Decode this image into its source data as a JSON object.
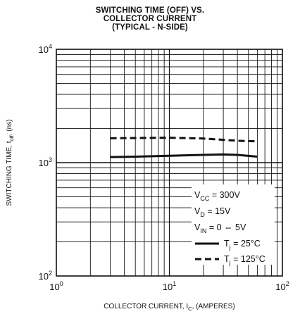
{
  "chart_data": {
    "type": "line",
    "title_lines": [
      "SWITCHING TIME (OFF) VS.",
      "COLLECTOR CURRENT",
      "(TYPICAL - N-SIDE)"
    ],
    "xlabel": "COLLECTOR CURRENT, IC, (AMPERES)",
    "ylabel": "SWITCHING TIME, toff, (ns)",
    "xscale": "log",
    "yscale": "log",
    "xlim": [
      1,
      100
    ],
    "ylim": [
      100,
      10000
    ],
    "x_tick_labels": [
      {
        "base": "10",
        "exp": "0"
      },
      {
        "base": "10",
        "exp": "1"
      },
      {
        "base": "10",
        "exp": "2"
      }
    ],
    "y_tick_labels": [
      {
        "base": "10",
        "exp": "2"
      },
      {
        "base": "10",
        "exp": "3"
      },
      {
        "base": "10",
        "exp": "4"
      }
    ],
    "grid": true,
    "conditions": [
      {
        "pre": "V",
        "sub": "CC",
        "post": " = 300V"
      },
      {
        "pre": "V",
        "sub": "D",
        "post": " = 15V"
      },
      {
        "pre": "V",
        "sub": "IN",
        "post": " = 0 ⇔ 5V"
      }
    ],
    "series": [
      {
        "name_pre": "T",
        "name_sub": "j",
        "name_post": " = 25°C",
        "style": "solid",
        "x": [
          3,
          5,
          10,
          20,
          30,
          40,
          60
        ],
        "y": [
          1120,
          1130,
          1150,
          1170,
          1180,
          1170,
          1130
        ]
      },
      {
        "name_pre": "T",
        "name_sub": "j",
        "name_post": " = 125°C",
        "style": "dashed",
        "x": [
          3,
          5,
          10,
          20,
          30,
          40,
          60
        ],
        "y": [
          1640,
          1650,
          1660,
          1630,
          1590,
          1560,
          1540
        ]
      }
    ],
    "colors": {
      "line": "#111111",
      "grid": "#111111",
      "background": "#ffffff"
    }
  }
}
